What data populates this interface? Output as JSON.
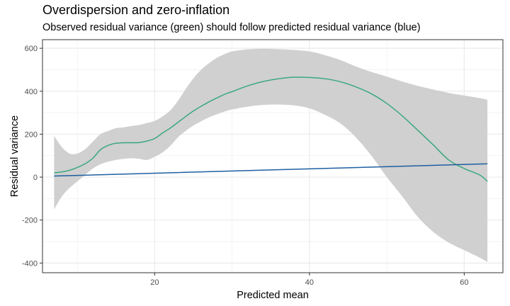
{
  "title": "Overdispersion and zero-inflation",
  "subtitle": "Observed residual variance (green) should follow predicted residual variance (blue)",
  "chart_data": {
    "type": "line",
    "title": "Overdispersion and zero-inflation",
    "subtitle": "Observed residual variance (green) should follow predicted residual variance (blue)",
    "xlabel": "Predicted mean",
    "ylabel": "Residual variance",
    "xlim": [
      5.5,
      65
    ],
    "ylim": [
      -445,
      640
    ],
    "x_ticks": [
      20,
      40,
      60
    ],
    "x_tick_labels": [
      "20",
      "40",
      "60"
    ],
    "y_ticks": [
      -400,
      -200,
      0,
      200,
      400,
      600
    ],
    "y_tick_labels": [
      "-400",
      "-200",
      "0",
      "200",
      "400",
      "600"
    ],
    "grid": true,
    "legend": "none",
    "colors": {
      "observed": "#3aa87e",
      "predicted": "#1f5fa0",
      "ribbon": "#d0d0d0",
      "grid": "#ebebeb",
      "panel_border": "#333333"
    },
    "series": [
      {
        "key": "observed",
        "color": "#3aa87e",
        "x": [
          7,
          8,
          9,
          10,
          11,
          12,
          13,
          14,
          15,
          16,
          17,
          18,
          19,
          20,
          21,
          22,
          23,
          24,
          25,
          26,
          27,
          28,
          29,
          30,
          32,
          34,
          36,
          38,
          40,
          42,
          44,
          46,
          48,
          50,
          52,
          54,
          56,
          58,
          60,
          62,
          63
        ],
        "y": [
          20,
          24,
          32,
          45,
          62,
          88,
          128,
          148,
          158,
          160,
          160,
          161,
          168,
          180,
          205,
          228,
          255,
          282,
          308,
          330,
          350,
          368,
          385,
          398,
          425,
          445,
          458,
          465,
          464,
          458,
          444,
          420,
          388,
          343,
          285,
          218,
          150,
          80,
          40,
          10,
          -20
        ]
      },
      {
        "key": "predicted",
        "color": "#1f5fa0",
        "x": [
          7,
          63
        ],
        "y": [
          5,
          62
        ]
      }
    ],
    "ribbon": {
      "x": [
        7,
        8,
        9,
        10,
        11,
        12,
        13,
        14,
        15,
        16,
        17,
        18,
        19,
        20,
        21,
        22,
        23,
        24,
        25,
        26,
        27,
        28,
        29,
        30,
        32,
        34,
        36,
        38,
        40,
        42,
        44,
        46,
        48,
        50,
        52,
        54,
        56,
        58,
        60,
        62,
        63
      ],
      "upper": [
        192,
        140,
        110,
        110,
        130,
        165,
        200,
        215,
        228,
        232,
        238,
        243,
        252,
        262,
        282,
        310,
        355,
        410,
        460,
        500,
        530,
        555,
        572,
        585,
        595,
        598,
        596,
        592,
        585,
        568,
        545,
        515,
        490,
        468,
        445,
        425,
        408,
        392,
        380,
        368,
        360
      ],
      "lower": [
        -150,
        -90,
        -50,
        -20,
        10,
        40,
        60,
        72,
        80,
        85,
        88,
        85,
        80,
        95,
        115,
        145,
        185,
        215,
        240,
        260,
        278,
        292,
        305,
        315,
        328,
        336,
        338,
        334,
        320,
        290,
        250,
        185,
        100,
        0,
        -90,
        -185,
        -255,
        -305,
        -340,
        -375,
        -395
      ]
    }
  }
}
